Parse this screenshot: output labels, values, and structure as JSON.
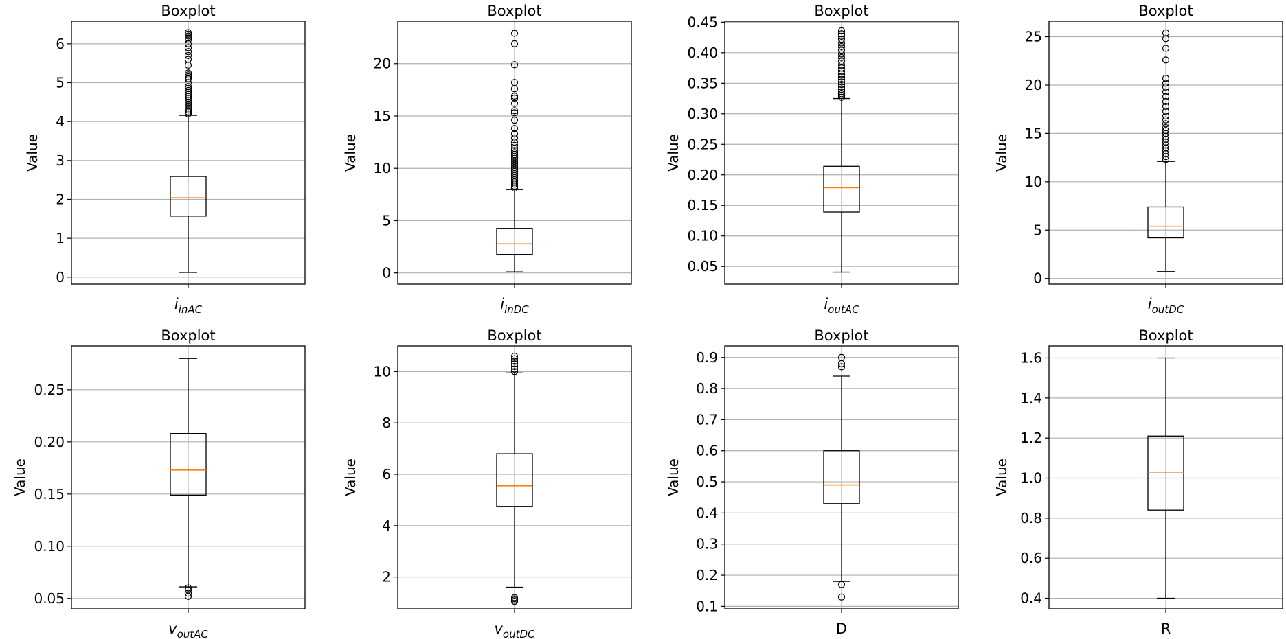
{
  "chart_data": [
    {
      "type": "boxplot",
      "title": "Boxplot",
      "ylabel": "Value",
      "xlabel": {
        "base": "i",
        "sub": "inAC",
        "italic": true
      },
      "ylim": [
        -0.18,
        6.58
      ],
      "yticks": [
        0,
        1,
        2,
        3,
        4,
        5,
        6
      ],
      "tick_labels": [
        "0",
        "1",
        "2",
        "3",
        "4",
        "5",
        "6"
      ],
      "whisker_low": 0.12,
      "q1": 1.57,
      "median": 2.04,
      "q3": 2.59,
      "whisker_high": 4.16,
      "outliers": [
        4.2,
        4.25,
        4.3,
        4.35,
        4.4,
        4.45,
        4.5,
        4.55,
        4.6,
        4.65,
        4.7,
        4.75,
        4.8,
        4.85,
        4.9,
        5.0,
        5.1,
        5.15,
        5.2,
        5.25,
        5.45,
        5.6,
        5.7,
        5.8,
        5.9,
        6.0,
        6.1,
        6.15,
        6.2,
        6.25,
        6.29
      ],
      "grid": true
    },
    {
      "type": "boxplot",
      "title": "Boxplot",
      "ylabel": "Value",
      "xlabel": {
        "base": "i",
        "sub": "inDC",
        "italic": true
      },
      "ylim": [
        -1.07,
        24.05
      ],
      "yticks": [
        0,
        5,
        10,
        15,
        20
      ],
      "tick_labels": [
        "0",
        "5",
        "10",
        "15",
        "20"
      ],
      "whisker_low": 0.1,
      "q1": 1.77,
      "median": 2.78,
      "q3": 4.26,
      "whisker_high": 7.97,
      "outliers": [
        8.1,
        8.3,
        8.5,
        8.7,
        8.9,
        9.1,
        9.3,
        9.5,
        9.7,
        9.9,
        10.1,
        10.3,
        10.5,
        10.7,
        10.9,
        11.1,
        11.3,
        11.5,
        11.7,
        11.9,
        12.2,
        12.5,
        12.9,
        13.3,
        13.8,
        14.6,
        15.3,
        15.5,
        16.2,
        16.7,
        16.9,
        17.6,
        18.2,
        19.9,
        21.9,
        22.9
      ],
      "grid": true
    },
    {
      "type": "boxplot",
      "title": "Boxplot",
      "ylabel": "Value",
      "xlabel": {
        "base": "i",
        "sub": "outAC",
        "italic": true
      },
      "ylim": [
        0.021,
        0.4515
      ],
      "yticks": [
        0.05,
        0.1,
        0.15,
        0.2,
        0.25,
        0.3,
        0.35,
        0.4,
        0.45
      ],
      "tick_labels": [
        "0.05",
        "0.10",
        "0.15",
        "0.20",
        "0.25",
        "0.30",
        "0.35",
        "0.40",
        "0.45"
      ],
      "whisker_low": 0.0406,
      "q1": 0.139,
      "median": 0.179,
      "q3": 0.214,
      "whisker_high": 0.325,
      "outliers": [
        0.327,
        0.33,
        0.333,
        0.336,
        0.34,
        0.344,
        0.348,
        0.352,
        0.356,
        0.36,
        0.365,
        0.37,
        0.375,
        0.38,
        0.386,
        0.392,
        0.398,
        0.404,
        0.41,
        0.416,
        0.422,
        0.427,
        0.431,
        0.436
      ],
      "grid": true
    },
    {
      "type": "boxplot",
      "title": "Boxplot",
      "ylabel": "Value",
      "xlabel": {
        "base": "i",
        "sub": "outDC",
        "italic": true
      },
      "ylim": [
        -0.59,
        26.6
      ],
      "yticks": [
        0,
        5,
        10,
        15,
        20,
        25
      ],
      "tick_labels": [
        "0",
        "5",
        "10",
        "15",
        "20",
        "25"
      ],
      "whisker_low": 0.7,
      "q1": 4.2,
      "median": 5.4,
      "q3": 7.4,
      "whisker_high": 12.1,
      "outliers": [
        12.3,
        12.6,
        12.9,
        13.2,
        13.5,
        13.8,
        14.1,
        14.4,
        14.7,
        15.0,
        15.3,
        15.6,
        16.0,
        16.4,
        16.8,
        17.3,
        17.8,
        18.3,
        18.8,
        19.3,
        19.8,
        20.2,
        20.7,
        22.6,
        23.8,
        24.8,
        25.4
      ],
      "grid": true
    },
    {
      "type": "boxplot",
      "title": "Boxplot",
      "ylabel": "Value",
      "xlabel": {
        "base": "v",
        "sub": "outAC",
        "italic": true
      },
      "ylim": [
        0.04,
        0.292
      ],
      "yticks": [
        0.05,
        0.1,
        0.15,
        0.2,
        0.25
      ],
      "tick_labels": [
        "0.05",
        "0.10",
        "0.15",
        "0.20",
        "0.25"
      ],
      "whisker_low": 0.061,
      "q1": 0.149,
      "median": 0.173,
      "q3": 0.208,
      "whisker_high": 0.28,
      "outliers": [
        0.052,
        0.055,
        0.058,
        0.06
      ],
      "grid": true
    },
    {
      "type": "boxplot",
      "title": "Boxplot",
      "ylabel": "Value",
      "xlabel": {
        "base": "v",
        "sub": "outDC",
        "italic": true
      },
      "ylim": [
        0.76,
        11.0
      ],
      "yticks": [
        2,
        4,
        6,
        8,
        10
      ],
      "tick_labels": [
        "2",
        "4",
        "6",
        "8",
        "10"
      ],
      "whisker_low": 1.6,
      "q1": 4.75,
      "median": 5.55,
      "q3": 6.8,
      "whisker_high": 9.95,
      "outliers": [
        1.05,
        1.1,
        1.15,
        1.2,
        10.0,
        10.1,
        10.2,
        10.3,
        10.4,
        10.5,
        10.6
      ],
      "grid": true
    },
    {
      "type": "boxplot",
      "title": "Boxplot",
      "ylabel": "Value",
      "xlabel": {
        "base": "D",
        "sub": "",
        "italic": false
      },
      "ylim": [
        0.092,
        0.937
      ],
      "yticks": [
        0.1,
        0.2,
        0.3,
        0.4,
        0.5,
        0.6,
        0.7,
        0.8,
        0.9
      ],
      "tick_labels": [
        "0.1",
        "0.2",
        "0.3",
        "0.4",
        "0.5",
        "0.6",
        "0.7",
        "0.8",
        "0.9"
      ],
      "whisker_low": 0.18,
      "q1": 0.43,
      "median": 0.49,
      "q3": 0.6,
      "whisker_high": 0.84,
      "outliers": [
        0.13,
        0.17,
        0.87,
        0.88,
        0.9
      ],
      "grid": true
    },
    {
      "type": "boxplot",
      "title": "Boxplot",
      "ylabel": "Value",
      "xlabel": {
        "base": "R",
        "sub": "",
        "italic": false
      },
      "ylim": [
        0.347,
        1.66
      ],
      "yticks": [
        0.4,
        0.6,
        0.8,
        1.0,
        1.2,
        1.4,
        1.6
      ],
      "tick_labels": [
        "0.4",
        "0.6",
        "0.8",
        "1.0",
        "1.2",
        "1.4",
        "1.6"
      ],
      "whisker_low": 0.4,
      "q1": 0.84,
      "median": 1.03,
      "q3": 1.21,
      "whisker_high": 1.6,
      "outliers": [],
      "grid": true
    }
  ],
  "colors": {
    "box": "#000000",
    "median": "#ff7f0e",
    "grid": "#b0b0b0"
  }
}
